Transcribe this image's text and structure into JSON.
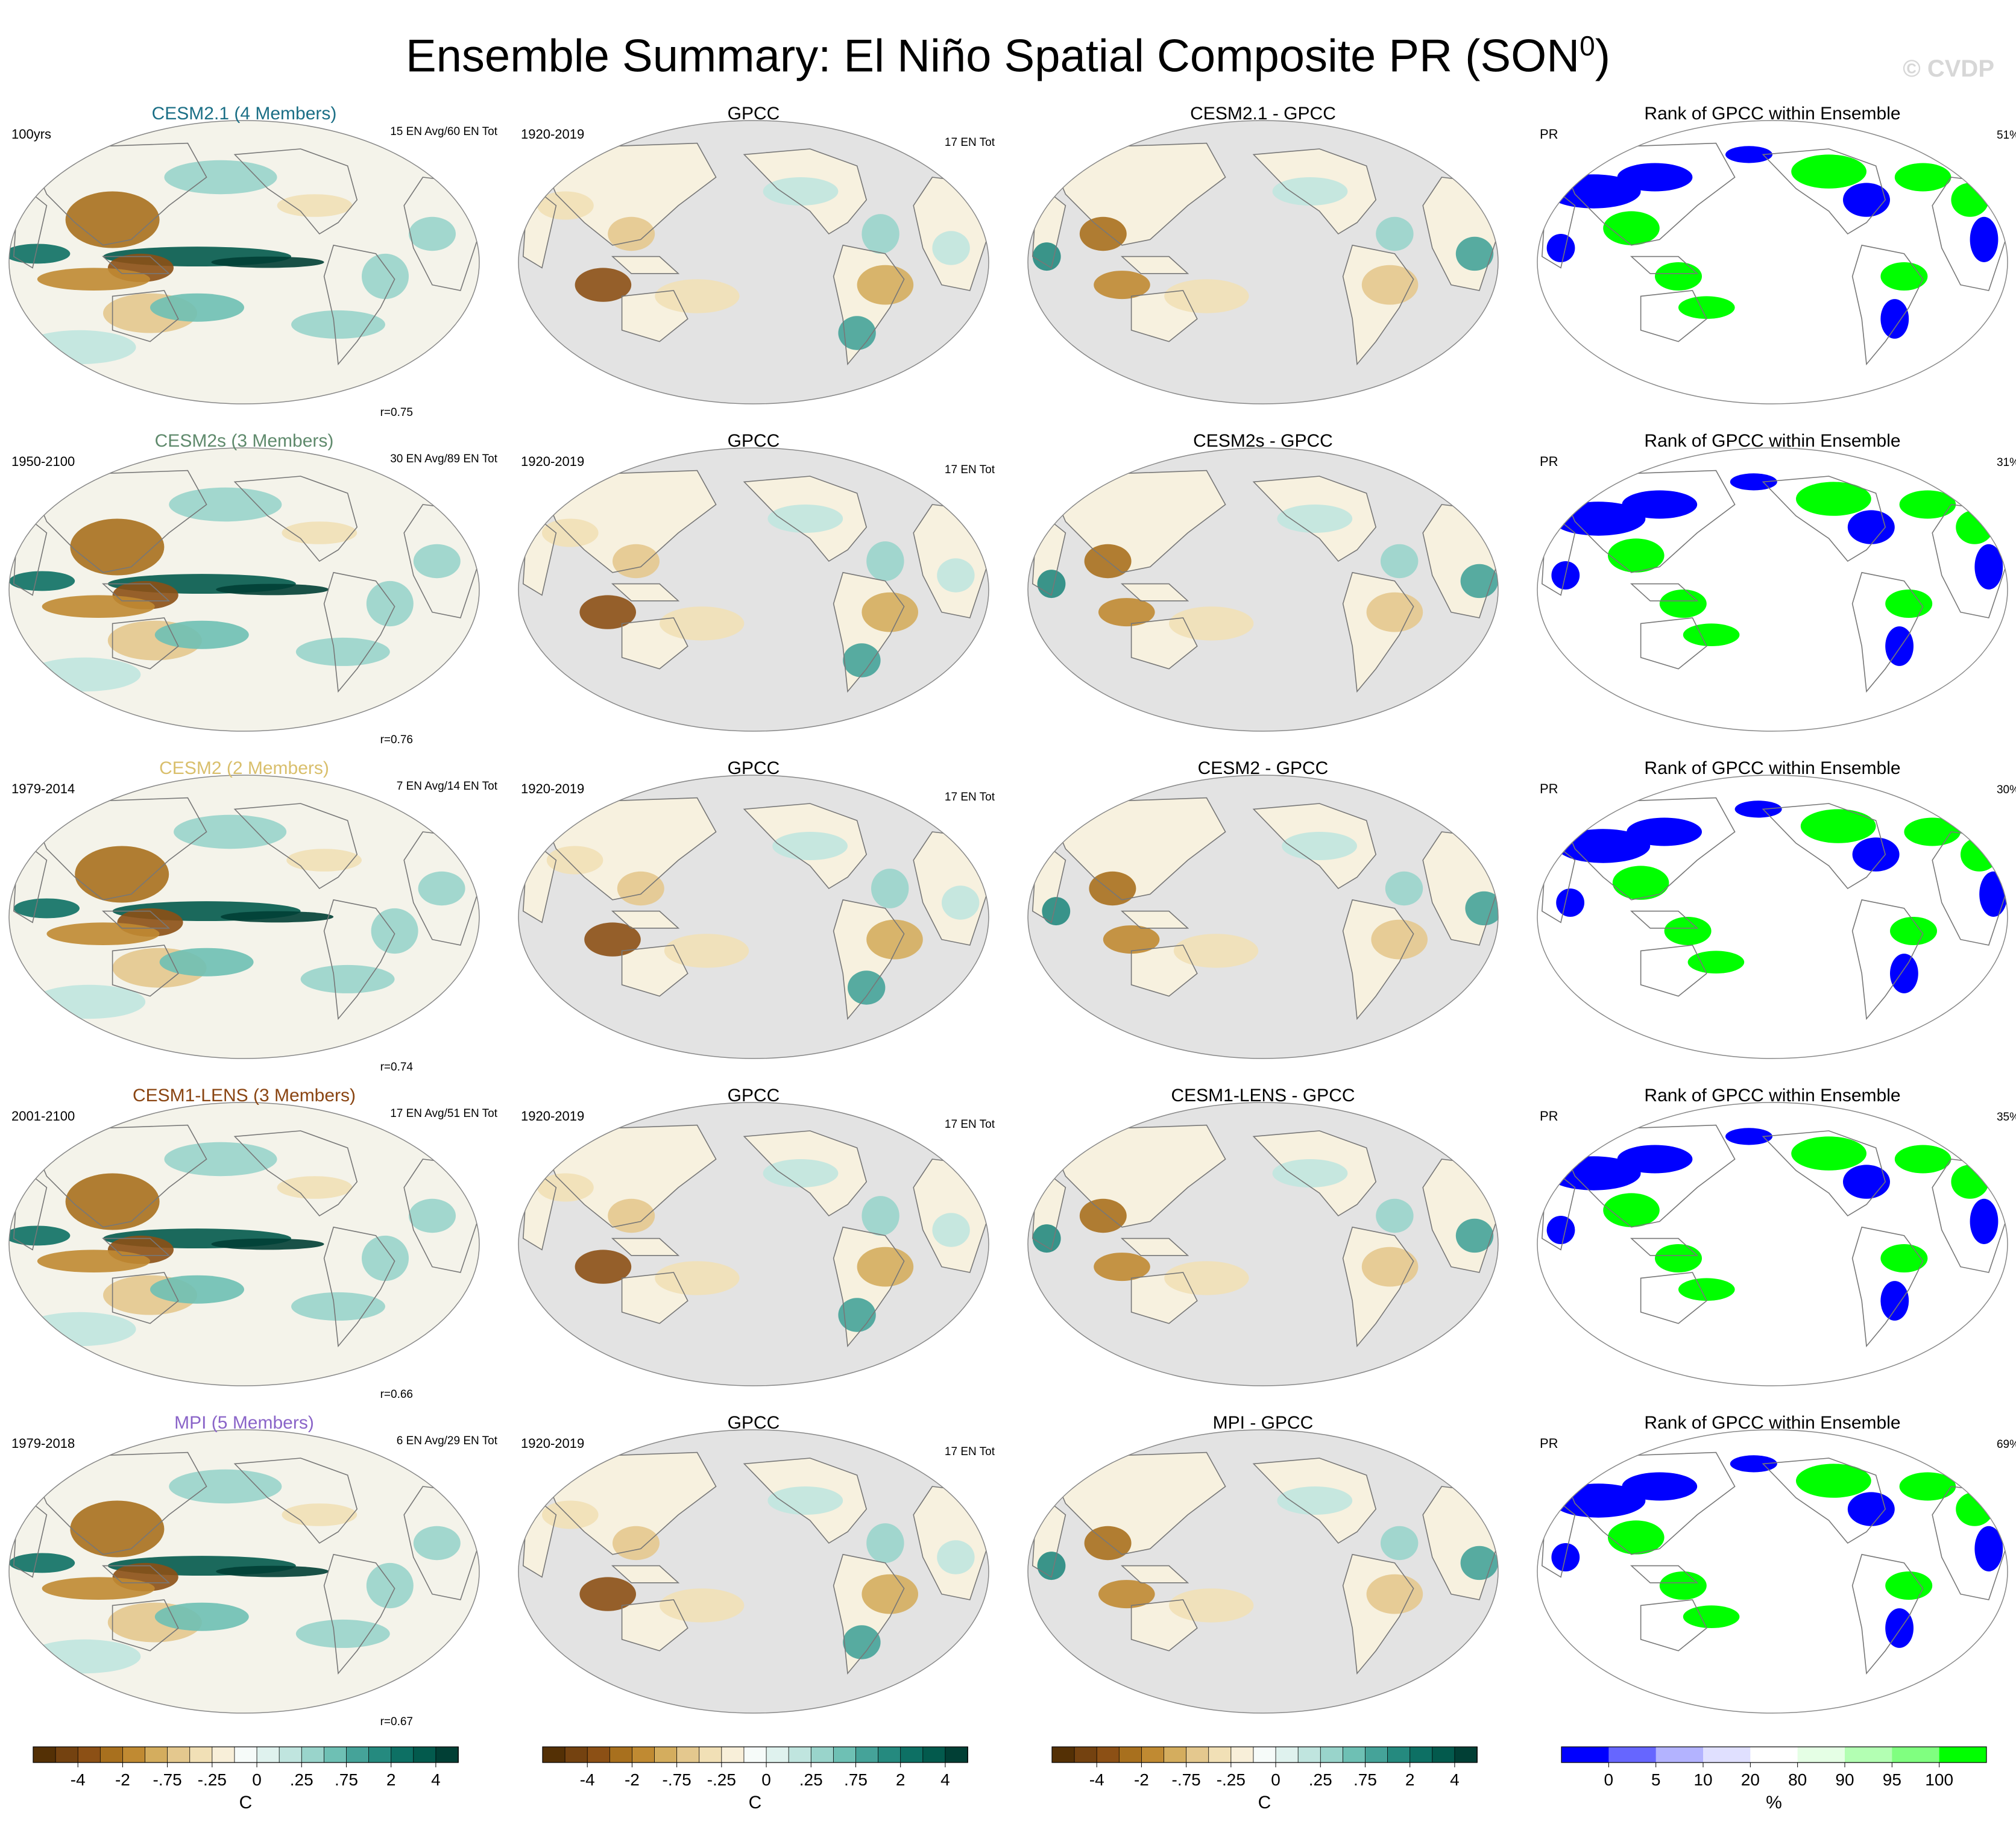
{
  "title": "Ensemble Summary: El Niño Spatial Composite PR (SON",
  "title_superscript": "0",
  "title_close": ")",
  "copyright": "© CVDP",
  "colors": {
    "diverging": [
      "#543005",
      "#744210",
      "#8c5015",
      "#a8701e",
      "#c08a32",
      "#d4ad5e",
      "#e4c88e",
      "#f1e0b6",
      "#f8efd9",
      "#f6fbf9",
      "#dff2ee",
      "#c0e5df",
      "#99d4cb",
      "#6ec0b4",
      "#45a399",
      "#258a7f",
      "#0d7064",
      "#035a4d",
      "#013f35"
    ],
    "rank": [
      "#0000ff",
      "#6666ff",
      "#b3b3ff",
      "#e0e0ff",
      "#ffffff",
      "#e5ffe5",
      "#b3ffb3",
      "#80ff80",
      "#00ff00"
    ],
    "ocean_gray": "#e3e3e3",
    "land_outline": "#777777"
  },
  "chart_data": {
    "type": "map-panel-grid",
    "rows": [
      {
        "model": "CESM2.1 (4 Members)",
        "model_color": "#1b6f86",
        "period": "100yrs",
        "en_counts": "15 EN Avg/60 EN Tot",
        "pattern_corr": "r=0.75",
        "obs_title": "GPCC",
        "obs_period": "1920-2019",
        "obs_count": "17 EN Tot",
        "diff_title": "CESM2.1 - GPCC",
        "rank_title": "Rank of GPCC within Ensemble",
        "rank_var": "PR",
        "rank_pct": "51%"
      },
      {
        "model": "CESM2s (3 Members)",
        "model_color": "#5f8a6c",
        "period": "1950-2100",
        "en_counts": "30 EN Avg/89 EN Tot",
        "pattern_corr": "r=0.76",
        "obs_title": "GPCC",
        "obs_period": "1920-2019",
        "obs_count": "17 EN Tot",
        "diff_title": "CESM2s - GPCC",
        "rank_title": "Rank of GPCC within Ensemble",
        "rank_var": "PR",
        "rank_pct": "31%"
      },
      {
        "model": "CESM2 (2 Members)",
        "model_color": "#d9bf6c",
        "period": "1979-2014",
        "en_counts": "7 EN Avg/14 EN Tot",
        "pattern_corr": "r=0.74",
        "obs_title": "GPCC",
        "obs_period": "1920-2019",
        "obs_count": "17 EN Tot",
        "diff_title": "CESM2 - GPCC",
        "rank_title": "Rank of GPCC within Ensemble",
        "rank_var": "PR",
        "rank_pct": "30%"
      },
      {
        "model": "CESM1-LENS (3 Members)",
        "model_color": "#8a4512",
        "period": "2001-2100",
        "en_counts": "17 EN Avg/51 EN Tot",
        "pattern_corr": "r=0.66",
        "obs_title": "GPCC",
        "obs_period": "1920-2019",
        "obs_count": "17 EN Tot",
        "diff_title": "CESM1-LENS - GPCC",
        "rank_title": "Rank of GPCC within Ensemble",
        "rank_var": "PR",
        "rank_pct": "35%"
      },
      {
        "model": "MPI (5 Members)",
        "model_color": "#8a64c8",
        "period": "1979-2018",
        "en_counts": "6 EN Avg/29 EN Tot",
        "pattern_corr": "r=0.67",
        "obs_title": "GPCC",
        "obs_period": "1920-2019",
        "obs_count": "17 EN Tot",
        "diff_title": "MPI - GPCC",
        "rank_title": "Rank of GPCC within Ensemble",
        "rank_var": "PR",
        "rank_pct": "69%"
      }
    ],
    "colorbars": [
      {
        "ticks": [
          "-4",
          "-2",
          "-.75",
          "-.25",
          "0",
          ".25",
          ".75",
          "2",
          "4"
        ],
        "unit": "C"
      },
      {
        "ticks": [
          "-4",
          "-2",
          "-.75",
          "-.25",
          "0",
          ".25",
          ".75",
          "2",
          "4"
        ],
        "unit": "C"
      },
      {
        "ticks": [
          "-4",
          "-2",
          "-.75",
          "-.25",
          "0",
          ".25",
          ".75",
          "2",
          "4"
        ],
        "unit": "C"
      },
      {
        "ticks": [
          "0",
          "5",
          "10",
          "20",
          "80",
          "90",
          "95",
          "100"
        ],
        "unit": "%"
      }
    ]
  }
}
